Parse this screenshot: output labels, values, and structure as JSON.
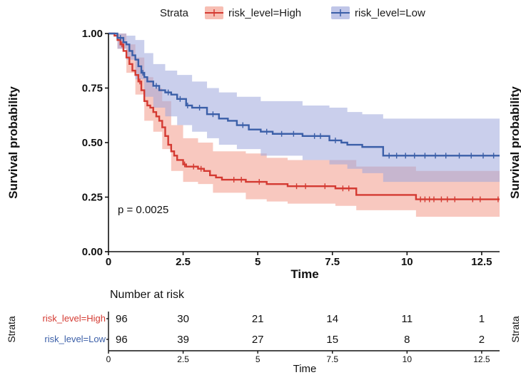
{
  "colors": {
    "high": "#d43a32",
    "low": "#3b5fa8",
    "high_band": "#f39b8a",
    "low_band": "#9ea8dc",
    "axis": "#111111"
  },
  "legend": {
    "title": "Strata",
    "items": [
      {
        "label": "risk_level=High",
        "series": "high"
      },
      {
        "label": "risk_level=Low",
        "series": "low"
      }
    ]
  },
  "p_value_text": "p = 0.0025",
  "risk_table": {
    "title": "Number at risk",
    "y_title": "Strata",
    "x_title": "Time",
    "rows": [
      {
        "label": "risk_level=High",
        "series": "high",
        "values": [
          "96",
          "30",
          "21",
          "14",
          "11",
          "1"
        ]
      },
      {
        "label": "risk_level=Low",
        "series": "low",
        "values": [
          "96",
          "39",
          "27",
          "15",
          "8",
          "2"
        ]
      }
    ],
    "tick_labels": [
      "0",
      "2.5",
      "5",
      "7.5",
      "10",
      "12.5"
    ]
  },
  "chart_data": {
    "type": "line",
    "subtype": "kaplan-meier step",
    "xlabel": "Time",
    "ylabel": "Survival probability",
    "xlim": [
      0,
      13.1
    ],
    "ylim": [
      0,
      1
    ],
    "x_ticks": [
      0,
      2.5,
      5,
      7.5,
      10,
      12.5
    ],
    "x_tick_labels": [
      "0",
      "2.5",
      "5",
      "7.5",
      "10",
      "12.5"
    ],
    "y_ticks": [
      0,
      0.25,
      0.5,
      0.75,
      1
    ],
    "y_tick_labels": [
      "0.00",
      "0.25",
      "0.50",
      "0.75",
      "1.00"
    ],
    "legend_position": "top",
    "series": [
      {
        "name": "risk_level=High",
        "key": "high",
        "steps": [
          [
            0,
            1.0
          ],
          [
            0.2,
            0.99
          ],
          [
            0.3,
            0.97
          ],
          [
            0.4,
            0.95
          ],
          [
            0.5,
            0.92
          ],
          [
            0.6,
            0.89
          ],
          [
            0.7,
            0.86
          ],
          [
            0.8,
            0.83
          ],
          [
            0.9,
            0.81
          ],
          [
            1.0,
            0.78
          ],
          [
            1.1,
            0.74
          ],
          [
            1.2,
            0.69
          ],
          [
            1.3,
            0.67
          ],
          [
            1.4,
            0.66
          ],
          [
            1.5,
            0.64
          ],
          [
            1.6,
            0.62
          ],
          [
            1.7,
            0.6
          ],
          [
            1.8,
            0.57
          ],
          [
            1.9,
            0.53
          ],
          [
            2.0,
            0.49
          ],
          [
            2.1,
            0.46
          ],
          [
            2.2,
            0.44
          ],
          [
            2.3,
            0.42
          ],
          [
            2.5,
            0.4
          ],
          [
            2.6,
            0.39
          ],
          [
            3.0,
            0.38
          ],
          [
            3.2,
            0.37
          ],
          [
            3.4,
            0.35
          ],
          [
            3.6,
            0.34
          ],
          [
            3.8,
            0.33
          ],
          [
            4.6,
            0.32
          ],
          [
            5.3,
            0.31
          ],
          [
            6.0,
            0.3
          ],
          [
            7.1,
            0.3
          ],
          [
            7.6,
            0.29
          ],
          [
            8.3,
            0.26
          ],
          [
            10.3,
            0.24
          ],
          [
            13.1,
            0.24
          ]
        ],
        "lower": [
          [
            0,
            1.0
          ],
          [
            0.3,
            0.93
          ],
          [
            0.6,
            0.82
          ],
          [
            0.9,
            0.72
          ],
          [
            1.2,
            0.6
          ],
          [
            1.5,
            0.55
          ],
          [
            1.8,
            0.47
          ],
          [
            2.1,
            0.37
          ],
          [
            2.5,
            0.32
          ],
          [
            3.0,
            0.31
          ],
          [
            3.5,
            0.27
          ],
          [
            4.6,
            0.24
          ],
          [
            5.3,
            0.23
          ],
          [
            6.0,
            0.22
          ],
          [
            7.6,
            0.21
          ],
          [
            8.3,
            0.19
          ],
          [
            10.3,
            0.16
          ],
          [
            13.1,
            0.15
          ]
        ],
        "upper": [
          [
            0,
            1.0
          ],
          [
            0.3,
            1.0
          ],
          [
            0.6,
            0.95
          ],
          [
            0.9,
            0.89
          ],
          [
            1.2,
            0.8
          ],
          [
            1.5,
            0.75
          ],
          [
            1.8,
            0.69
          ],
          [
            2.1,
            0.58
          ],
          [
            2.5,
            0.52
          ],
          [
            3.0,
            0.5
          ],
          [
            3.5,
            0.46
          ],
          [
            4.6,
            0.45
          ],
          [
            5.3,
            0.43
          ],
          [
            6.0,
            0.42
          ],
          [
            7.6,
            0.42
          ],
          [
            8.3,
            0.39
          ],
          [
            10.3,
            0.37
          ],
          [
            13.1,
            0.37
          ]
        ],
        "censor_times": [
          0.45,
          1.05,
          2.55,
          2.85,
          3.1,
          4.2,
          4.45,
          5.05,
          6.3,
          6.6,
          7.25,
          7.85,
          8.05,
          10.45,
          10.6,
          10.75,
          10.9,
          11.15,
          11.35,
          11.6,
          12.2,
          12.45,
          13.05
        ]
      },
      {
        "name": "risk_level=Low",
        "key": "low",
        "steps": [
          [
            0,
            1.0
          ],
          [
            0.3,
            0.98
          ],
          [
            0.5,
            0.96
          ],
          [
            0.6,
            0.95
          ],
          [
            0.7,
            0.92
          ],
          [
            0.8,
            0.9
          ],
          [
            0.9,
            0.88
          ],
          [
            1.0,
            0.85
          ],
          [
            1.1,
            0.82
          ],
          [
            1.2,
            0.8
          ],
          [
            1.3,
            0.78
          ],
          [
            1.5,
            0.76
          ],
          [
            1.7,
            0.74
          ],
          [
            1.9,
            0.73
          ],
          [
            2.1,
            0.72
          ],
          [
            2.3,
            0.7
          ],
          [
            2.6,
            0.67
          ],
          [
            2.8,
            0.66
          ],
          [
            3.3,
            0.63
          ],
          [
            3.7,
            0.61
          ],
          [
            4.0,
            0.6
          ],
          [
            4.3,
            0.58
          ],
          [
            4.7,
            0.56
          ],
          [
            5.1,
            0.55
          ],
          [
            5.5,
            0.54
          ],
          [
            6.4,
            0.54
          ],
          [
            6.5,
            0.53
          ],
          [
            7.4,
            0.51
          ],
          [
            7.8,
            0.5
          ],
          [
            8.0,
            0.49
          ],
          [
            8.5,
            0.48
          ],
          [
            9.2,
            0.44
          ],
          [
            13.1,
            0.44
          ]
        ],
        "lower": [
          [
            0,
            1.0
          ],
          [
            0.3,
            0.93
          ],
          [
            0.6,
            0.88
          ],
          [
            0.9,
            0.79
          ],
          [
            1.2,
            0.71
          ],
          [
            1.5,
            0.66
          ],
          [
            1.9,
            0.62
          ],
          [
            2.3,
            0.58
          ],
          [
            2.8,
            0.55
          ],
          [
            3.3,
            0.52
          ],
          [
            3.7,
            0.49
          ],
          [
            4.3,
            0.47
          ],
          [
            5.1,
            0.44
          ],
          [
            6.5,
            0.42
          ],
          [
            7.4,
            0.4
          ],
          [
            8.0,
            0.38
          ],
          [
            8.5,
            0.36
          ],
          [
            9.2,
            0.32
          ],
          [
            13.1,
            0.31
          ]
        ],
        "upper": [
          [
            0,
            1.0
          ],
          [
            0.3,
            1.0
          ],
          [
            0.6,
            0.99
          ],
          [
            0.9,
            0.97
          ],
          [
            1.2,
            0.91
          ],
          [
            1.5,
            0.86
          ],
          [
            1.9,
            0.83
          ],
          [
            2.3,
            0.81
          ],
          [
            2.8,
            0.78
          ],
          [
            3.3,
            0.75
          ],
          [
            3.7,
            0.73
          ],
          [
            4.3,
            0.71
          ],
          [
            5.1,
            0.69
          ],
          [
            6.5,
            0.67
          ],
          [
            7.4,
            0.66
          ],
          [
            8.0,
            0.64
          ],
          [
            8.5,
            0.63
          ],
          [
            9.2,
            0.61
          ],
          [
            13.1,
            0.61
          ]
        ],
        "censor_times": [
          0.4,
          1.15,
          1.6,
          2.0,
          2.4,
          2.65,
          3.05,
          3.5,
          4.5,
          5.3,
          5.8,
          6.2,
          6.9,
          7.1,
          7.6,
          9.4,
          9.65,
          9.95,
          10.25,
          10.6,
          10.95,
          11.3,
          11.75,
          12.15,
          12.55,
          12.9
        ]
      }
    ]
  }
}
